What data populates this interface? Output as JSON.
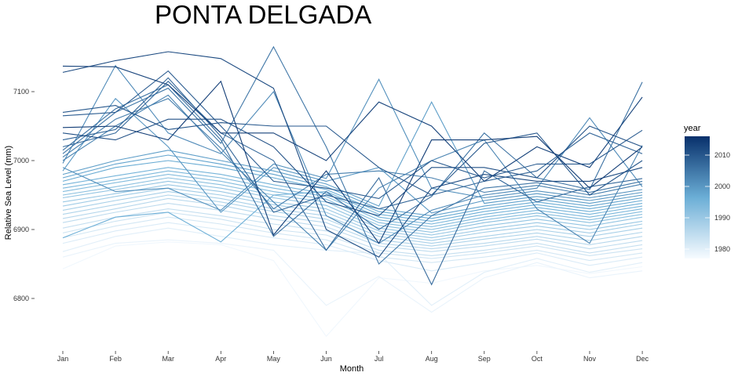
{
  "chart_data": {
    "type": "line",
    "title": "PONTA DELGADA",
    "xlabel": "Month",
    "ylabel": "Relative Sea Level (mm)",
    "categories": [
      "Jan",
      "Feb",
      "Mar",
      "Apr",
      "May",
      "Jun",
      "Jul",
      "Aug",
      "Sep",
      "Oct",
      "Nov",
      "Dec"
    ],
    "y_ticks": [
      6800,
      6900,
      7000,
      7100
    ],
    "ylim": [
      6740,
      7180
    ],
    "grid": false,
    "legend": {
      "title": "year",
      "position": "right",
      "type": "colorbar",
      "ticks": [
        1980,
        1990,
        2000,
        2010
      ],
      "range": [
        1977,
        2016
      ],
      "color_low": "#f7fbff",
      "color_high": "#08306b"
    },
    "series": [
      {
        "year": 1978,
        "values": [
          6843,
          6876,
          6882,
          6878,
          6855,
          6745,
          6830,
          6822,
          6840,
          6848,
          6836,
          6846
        ]
      },
      {
        "year": 1979,
        "values": [
          6860,
          6880,
          6885,
          6880,
          6870,
          6790,
          6832,
          6780,
          6830,
          6852,
          6830,
          6840
        ]
      },
      {
        "year": 1980,
        "values": [
          6868,
          6890,
          6902,
          6890,
          6878,
          6870,
          6865,
          6790,
          6838,
          6858,
          6838,
          6852
        ]
      },
      {
        "year": 1981,
        "values": [
          6880,
          6898,
          6910,
          6900,
          6888,
          6878,
          6855,
          6840,
          6852,
          6866,
          6848,
          6860
        ]
      },
      {
        "year": 1982,
        "values": [
          6888,
          6905,
          6918,
          6908,
          6895,
          6885,
          6860,
          6852,
          6860,
          6870,
          6855,
          6866
        ]
      },
      {
        "year": 1983,
        "values": [
          6895,
          6912,
          6925,
          6915,
          6900,
          6892,
          6866,
          6858,
          6866,
          6876,
          6862,
          6872
        ]
      },
      {
        "year": 1984,
        "values": [
          6902,
          6918,
          6930,
          6920,
          6908,
          6898,
          6870,
          6862,
          6870,
          6880,
          6866,
          6878
        ]
      },
      {
        "year": 1985,
        "values": [
          6910,
          6925,
          6938,
          6928,
          6915,
          6904,
          6876,
          6868,
          6876,
          6886,
          6872,
          6884
        ]
      },
      {
        "year": 1986,
        "values": [
          6916,
          6930,
          6945,
          6935,
          6920,
          6910,
          6880,
          6872,
          6880,
          6890,
          6878,
          6890
        ]
      },
      {
        "year": 1987,
        "values": [
          6922,
          6936,
          6950,
          6940,
          6926,
          6915,
          6885,
          6876,
          6886,
          6895,
          6884,
          6896
        ]
      },
      {
        "year": 1988,
        "values": [
          6928,
          6942,
          6955,
          6945,
          6930,
          6920,
          6890,
          6880,
          6890,
          6900,
          6890,
          6902
        ]
      },
      {
        "year": 1989,
        "values": [
          6934,
          6948,
          6960,
          6950,
          6936,
          6925,
          6894,
          6884,
          6896,
          6905,
          6895,
          6908
        ]
      },
      {
        "year": 1990,
        "values": [
          6940,
          6952,
          6965,
          6955,
          6940,
          6930,
          6898,
          6888,
          6900,
          6910,
          6900,
          6912
        ]
      },
      {
        "year": 1991,
        "values": [
          6946,
          6958,
          6970,
          6960,
          6946,
          6935,
          6902,
          6892,
          6905,
          6915,
          6905,
          6918
        ]
      },
      {
        "year": 1992,
        "values": [
          6950,
          6962,
          6975,
          6965,
          6950,
          6940,
          6906,
          6896,
          6910,
          6920,
          6910,
          6922
        ]
      },
      {
        "year": 1993,
        "values": [
          6955,
          6968,
          6980,
          6970,
          6955,
          6944,
          6910,
          6900,
          6914,
          6924,
          6914,
          6926
        ]
      },
      {
        "year": 1994,
        "values": [
          6960,
          6972,
          6985,
          6975,
          6960,
          6948,
          6914,
          6904,
          6918,
          6928,
          6918,
          6930
        ]
      },
      {
        "year": 1995,
        "values": [
          6965,
          6978,
          6990,
          6980,
          6965,
          6952,
          6918,
          6908,
          6922,
          6932,
          6922,
          6934
        ]
      },
      {
        "year": 1996,
        "values": [
          6888,
          6918,
          6925,
          6882,
          6950,
          6955,
          6922,
          6912,
          6926,
          6936,
          6926,
          6938
        ]
      },
      {
        "year": 1997,
        "values": [
          6970,
          6990,
          7000,
          6990,
          6975,
          6958,
          6926,
          6916,
          6930,
          6940,
          6930,
          6942
        ]
      },
      {
        "year": 1998,
        "values": [
          6975,
          6995,
          7008,
          6995,
          6980,
          6962,
          6930,
          6920,
          6934,
          6944,
          6934,
          6946
        ]
      },
      {
        "year": 1999,
        "values": [
          6980,
          7000,
          7015,
          7000,
          6985,
          6966,
          6934,
          7085,
          6938,
          6948,
          6938,
          6950
        ]
      },
      {
        "year": 2000,
        "values": [
          6985,
          7090,
          7020,
          6925,
          6990,
          6970,
          6990,
          6924,
          6942,
          6952,
          6942,
          6954
        ]
      },
      {
        "year": 2001,
        "values": [
          6990,
          6955,
          6960,
          6928,
          6995,
          6974,
          7118,
          6960,
          6946,
          6956,
          6946,
          6958
        ]
      },
      {
        "year": 2002,
        "values": [
          6996,
          7138,
          7040,
          7010,
          7100,
          6920,
          6880,
          6928,
          6950,
          6960,
          7062,
          6962
        ]
      },
      {
        "year": 2003,
        "values": [
          7000,
          7050,
          7095,
          7012,
          6940,
          6870,
          6960,
          7000,
          7030,
          6930,
          6880,
          7022
        ]
      },
      {
        "year": 2004,
        "values": [
          7005,
          7060,
          7090,
          7018,
          6930,
          6980,
          6985,
          6975,
          6954,
          6964,
          6950,
          6966
        ]
      },
      {
        "year": 2005,
        "values": [
          7010,
          7070,
          7105,
          7025,
          7165,
          7020,
          6850,
          6920,
          6960,
          6968,
          6954,
          6970
        ]
      },
      {
        "year": 2006,
        "values": [
          7015,
          7075,
          7110,
          7030,
          6890,
          6955,
          6900,
          6948,
          7040,
          6975,
          6958,
          7114
        ]
      },
      {
        "year": 2007,
        "values": [
          7020,
          7040,
          7115,
          7040,
          7000,
          6870,
          6975,
          6820,
          6985,
          6940,
          6962,
          6974
        ]
      },
      {
        "year": 2008,
        "values": [
          7030,
          7045,
          7120,
          7035,
          6925,
          6950,
          6930,
          6950,
          6970,
          6985,
          7040,
          7010
        ]
      },
      {
        "year": 2009,
        "values": [
          7065,
          7070,
          7130,
          7050,
          6970,
          6960,
          6945,
          7000,
          6975,
          6995,
          6995,
          7044
        ]
      },
      {
        "year": 2010,
        "values": [
          7070,
          7080,
          7045,
          7055,
          7050,
          7050,
          6990,
          6950,
          7025,
          7040,
          6950,
          7000
        ]
      },
      {
        "year": 2011,
        "values": [
          7040,
          7030,
          7060,
          7060,
          7020,
          6940,
          6920,
          6990,
          6990,
          6975,
          7050,
          7020
        ]
      },
      {
        "year": 2012,
        "values": [
          7128,
          7145,
          7158,
          7148,
          7105,
          6900,
          6860,
          6960,
          6980,
          6970,
          6970,
          6990
        ]
      },
      {
        "year": 2013,
        "values": [
          7137,
          7136,
          7110,
          7040,
          7040,
          7000,
          7085,
          7050,
          6970,
          7020,
          6990,
          7092
        ]
      },
      {
        "year": 2014,
        "values": [
          7048,
          7050,
          7030,
          7115,
          6892,
          6985,
          6880,
          7030,
          7030,
          7035,
          6960,
          7020
        ]
      }
    ]
  }
}
